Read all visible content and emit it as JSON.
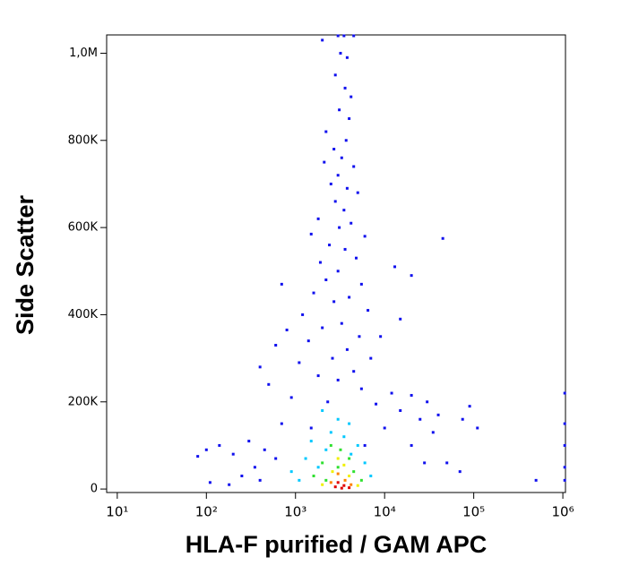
{
  "chart_data": {
    "type": "scatter",
    "xlabel": "HLA-F purified / GAM APC",
    "ylabel": "Side Scatter",
    "xscale": "log",
    "xlim": [
      7.6,
      1070000
    ],
    "ylim": [
      -8000,
      1042000
    ],
    "xticks": [
      {
        "value": 10,
        "label": "10¹"
      },
      {
        "value": 100,
        "label": "10²"
      },
      {
        "value": 1000,
        "label": "10³"
      },
      {
        "value": 10000,
        "label": "10⁴"
      },
      {
        "value": 100000,
        "label": "10⁵"
      },
      {
        "value": 1000000,
        "label": "10⁶"
      }
    ],
    "yticks": [
      0,
      {
        "value": 200000,
        "label": "200K"
      },
      {
        "value": 400000,
        "label": "400K"
      },
      {
        "value": 600000,
        "label": "600K"
      },
      {
        "value": 800000,
        "label": "800K"
      },
      {
        "value": 1000000,
        "label": "1,0M"
      }
    ],
    "series": [
      {
        "color": "#1010ee",
        "x": [
          3000,
          3500,
          4500,
          2000,
          3200,
          3800,
          2800,
          3600,
          4200,
          3100,
          4000,
          2200,
          3700,
          2700,
          3300,
          2100,
          4500,
          3000,
          2500,
          3800,
          5000,
          2800,
          3500,
          1800,
          4200,
          3100,
          1500,
          6000,
          45000,
          2400,
          3600,
          4800,
          1900,
          13000,
          3000,
          2200,
          20000,
          5500,
          700,
          1600,
          4000,
          2700,
          6500,
          1200,
          15000,
          3300,
          2000,
          800,
          5200,
          9000,
          1400,
          600,
          3800,
          2600,
          7000,
          1100,
          400,
          4500,
          1800,
          3000,
          500,
          5500,
          12000,
          20000,
          30000,
          900,
          2300,
          8000,
          15000,
          40000,
          25000,
          700,
          1500,
          10000,
          35000,
          300,
          450,
          200,
          100,
          80,
          140,
          600,
          20000,
          50000,
          70000,
          28000,
          250,
          400,
          180,
          110,
          1050000,
          1050000,
          1050000,
          1050000,
          1050000,
          500000,
          90000,
          110000,
          75000,
          350,
          6000
        ],
        "values": [
          1040000,
          1040000,
          1040000,
          1030000,
          1000000,
          990000,
          950000,
          920000,
          900000,
          870000,
          850000,
          820000,
          800000,
          780000,
          760000,
          750000,
          740000,
          720000,
          700000,
          690000,
          680000,
          660000,
          640000,
          620000,
          610000,
          600000,
          585000,
          580000,
          575000,
          560000,
          550000,
          530000,
          520000,
          510000,
          500000,
          480000,
          490000,
          470000,
          470000,
          450000,
          440000,
          430000,
          410000,
          400000,
          390000,
          380000,
          370000,
          365000,
          350000,
          350000,
          340000,
          330000,
          320000,
          300000,
          300000,
          290000,
          280000,
          270000,
          260000,
          250000,
          240000,
          230000,
          220000,
          215000,
          200000,
          210000,
          200000,
          195000,
          180000,
          170000,
          160000,
          150000,
          140000,
          140000,
          130000,
          110000,
          90000,
          80000,
          90000,
          75000,
          100000,
          70000,
          100000,
          60000,
          40000,
          60000,
          30000,
          20000,
          10000,
          15000,
          220000,
          150000,
          100000,
          50000,
          20000,
          20000,
          190000,
          140000,
          160000,
          50000,
          100000
        ]
      },
      {
        "color": "#00c8ff",
        "x": [
          2000,
          3000,
          4000,
          2500,
          3500,
          1500,
          5000,
          2200,
          4200,
          1300,
          6000,
          1800,
          900,
          7000,
          1100
        ],
        "values": [
          180000,
          160000,
          150000,
          130000,
          120000,
          110000,
          100000,
          90000,
          80000,
          70000,
          60000,
          50000,
          40000,
          30000,
          20000
        ]
      },
      {
        "color": "#30e030",
        "x": [
          2500,
          3200,
          4000,
          2000,
          3000,
          4500,
          1600,
          2200,
          5500
        ],
        "values": [
          100000,
          90000,
          70000,
          60000,
          50000,
          40000,
          30000,
          20000,
          20000
        ]
      },
      {
        "color": "#f0f000",
        "x": [
          3000,
          3500,
          2600,
          4000,
          2000,
          5000
        ],
        "values": [
          70000,
          55000,
          40000,
          30000,
          10000,
          8000
        ]
      },
      {
        "color": "#ff8000",
        "x": [
          3000,
          3600,
          2500,
          4200
        ],
        "values": [
          35000,
          20000,
          15000,
          10000
        ]
      },
      {
        "color": "#e00000",
        "x": [
          3000,
          3500,
          2800,
          3300,
          4000
        ],
        "values": [
          15000,
          8000,
          5000,
          2000,
          3000
        ]
      }
    ]
  }
}
